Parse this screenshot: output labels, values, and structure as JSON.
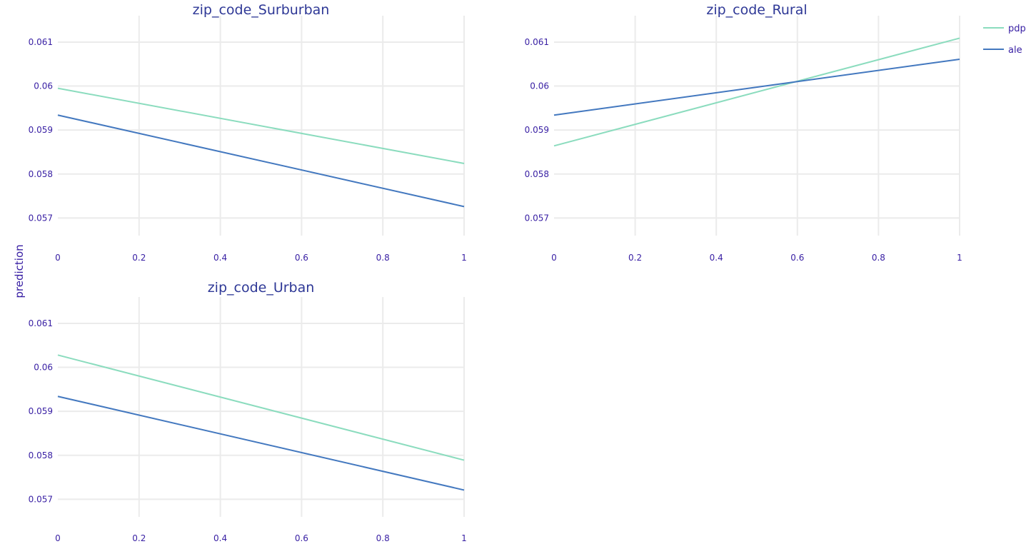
{
  "figure": {
    "ylabel": "prediction"
  },
  "legend": {
    "placement": "top-right",
    "entries": [
      {
        "name": "pdp",
        "color": "#8bdcbe"
      },
      {
        "name": "ale",
        "color": "#4378bf"
      }
    ]
  },
  "chart_data": [
    {
      "type": "line",
      "title": "zip_code_Surburban",
      "xlim": [
        0,
        1
      ],
      "ylim": [
        0.0566,
        0.0616
      ],
      "x_ticks": [
        "0",
        "0.2",
        "0.4",
        "0.6",
        "0.8",
        "1"
      ],
      "y_ticks": [
        "0.057",
        "0.058",
        "0.059",
        "0.06",
        "0.061"
      ],
      "grid": true,
      "series": [
        {
          "name": "pdp",
          "color": "#8bdcbe",
          "x": [
            0,
            1
          ],
          "y": [
            0.05995,
            0.05824
          ]
        },
        {
          "name": "ale",
          "color": "#4378bf",
          "x": [
            0,
            1
          ],
          "y": [
            0.05934,
            0.05726
          ]
        }
      ]
    },
    {
      "type": "line",
      "title": "zip_code_Rural",
      "xlim": [
        0,
        1
      ],
      "ylim": [
        0.0566,
        0.0616
      ],
      "x_ticks": [
        "0",
        "0.2",
        "0.4",
        "0.6",
        "0.8",
        "1"
      ],
      "y_ticks": [
        "0.057",
        "0.058",
        "0.059",
        "0.06",
        "0.061"
      ],
      "grid": true,
      "series": [
        {
          "name": "pdp",
          "color": "#8bdcbe",
          "x": [
            0,
            1
          ],
          "y": [
            0.05864,
            0.06109
          ]
        },
        {
          "name": "ale",
          "color": "#4378bf",
          "x": [
            0,
            1
          ],
          "y": [
            0.05934,
            0.06061
          ]
        }
      ]
    },
    {
      "type": "line",
      "title": "zip_code_Urban",
      "xlim": [
        0,
        1
      ],
      "ylim": [
        0.0566,
        0.0616
      ],
      "x_ticks": [
        "0",
        "0.2",
        "0.4",
        "0.6",
        "0.8",
        "1"
      ],
      "y_ticks": [
        "0.057",
        "0.058",
        "0.059",
        "0.06",
        "0.061"
      ],
      "grid": true,
      "series": [
        {
          "name": "pdp",
          "color": "#8bdcbe",
          "x": [
            0,
            1
          ],
          "y": [
            0.06028,
            0.05789
          ]
        },
        {
          "name": "ale",
          "color": "#4378bf",
          "x": [
            0,
            1
          ],
          "y": [
            0.05934,
            0.05721
          ]
        }
      ]
    }
  ]
}
